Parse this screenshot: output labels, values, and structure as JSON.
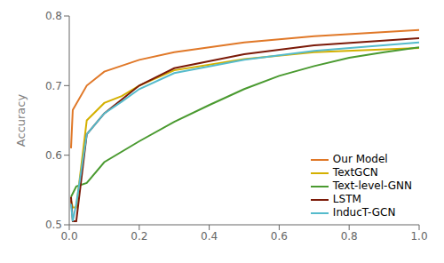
{
  "chart_data": {
    "type": "line",
    "ylabel": "Accuracy",
    "xlim": [
      0,
      1.0
    ],
    "ylim": [
      0.5,
      0.8
    ],
    "yticks": [
      0.5,
      0.6,
      0.7,
      0.8
    ],
    "xticks": [
      {
        "value": 0,
        "label": "0.0"
      },
      0.2,
      0.4,
      0.6,
      0.8,
      {
        "value": 1,
        "label": "1.0"
      }
    ],
    "grid": false,
    "legend": "lower right",
    "series": [
      {
        "name": "Our Model",
        "color": "#E07828",
        "x": [
          0.005,
          0.01,
          0.05,
          0.1,
          0.2,
          0.3,
          0.5,
          0.7,
          1.0
        ],
        "values": [
          0.61,
          0.665,
          0.7,
          0.72,
          0.737,
          0.748,
          0.762,
          0.771,
          0.78
        ]
      },
      {
        "name": "TextGCN",
        "color": "#D4B000",
        "x": [
          0.005,
          0.01,
          0.02,
          0.05,
          0.1,
          0.15,
          0.2,
          0.3,
          0.5,
          0.7,
          1.0
        ],
        "values": [
          0.535,
          0.525,
          0.525,
          0.65,
          0.675,
          0.685,
          0.7,
          0.722,
          0.738,
          0.748,
          0.754
        ]
      },
      {
        "name": "Text-level-GNN",
        "color": "#4A9A30",
        "x": [
          0.005,
          0.01,
          0.02,
          0.05,
          0.1,
          0.2,
          0.3,
          0.4,
          0.5,
          0.6,
          0.7,
          0.8,
          0.9,
          1.0
        ],
        "values": [
          0.54,
          0.545,
          0.555,
          0.56,
          0.59,
          0.62,
          0.648,
          0.672,
          0.695,
          0.714,
          0.728,
          0.74,
          0.748,
          0.755
        ]
      },
      {
        "name": "LSTM",
        "color": "#7B1A08",
        "x": [
          0.005,
          0.01,
          0.02,
          0.05,
          0.1,
          0.15,
          0.2,
          0.3,
          0.5,
          0.7,
          1.0
        ],
        "values": [
          0.54,
          0.505,
          0.505,
          0.63,
          0.66,
          0.68,
          0.7,
          0.725,
          0.745,
          0.758,
          0.768
        ]
      },
      {
        "name": "InducT-GCN",
        "color": "#55BBCC",
        "x": [
          0.005,
          0.01,
          0.02,
          0.05,
          0.1,
          0.15,
          0.2,
          0.3,
          0.5,
          0.7,
          1.0
        ],
        "values": [
          0.53,
          0.505,
          0.53,
          0.63,
          0.66,
          0.677,
          0.695,
          0.718,
          0.737,
          0.75,
          0.762
        ]
      }
    ]
  }
}
